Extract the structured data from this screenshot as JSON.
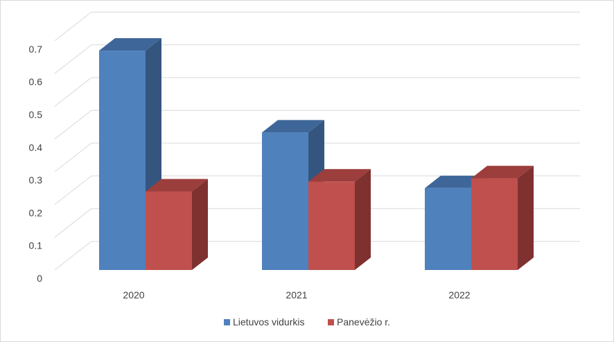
{
  "chart_data": {
    "type": "bar",
    "style": "3d-clustered-column",
    "categories": [
      "2020",
      "2021",
      "2022"
    ],
    "series": [
      {
        "name": "Lietuvos vidurkis",
        "values": [
          0.67,
          0.42,
          0.25
        ],
        "color": "#4F81BD",
        "side_color": "#34557E",
        "top_color": "#3E6698"
      },
      {
        "name": "Panevėžio r.",
        "values": [
          0.24,
          0.27,
          0.28
        ],
        "color": "#C0504D",
        "side_color": "#7F3130",
        "top_color": "#9C3E3C"
      }
    ],
    "yticks": [
      "0",
      "0.1",
      "0.2",
      "0.3",
      "0.4",
      "0.5",
      "0.6",
      "0.7"
    ],
    "ylim": [
      0,
      0.7
    ],
    "grid": true,
    "legend_position": "bottom",
    "title": "",
    "xlabel": "",
    "ylabel": ""
  }
}
